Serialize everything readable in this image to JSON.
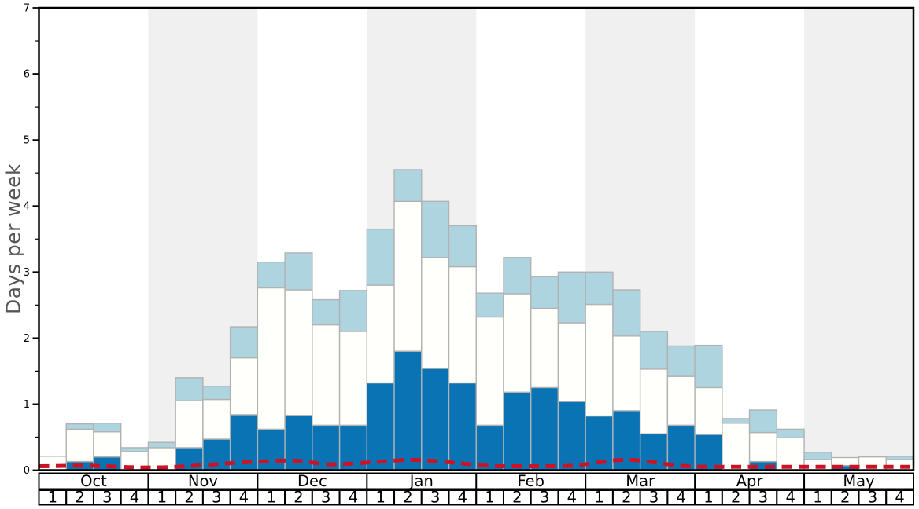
{
  "figure": {
    "y_axis_label": "Days per week",
    "colors": {
      "dark_blue": "#0a73b4",
      "white_bar": "#fffffb",
      "light_blue": "#aed4e0",
      "bar_border": "#b2b2b2",
      "red_line": "#cc1326",
      "shaded_band": "#f0f0f0",
      "axis": "#000000",
      "ylabel_text": "#555555"
    }
  },
  "chart_data": {
    "type": "bar",
    "stacked": true,
    "title": "",
    "xlabel": "",
    "ylabel": "Days per week",
    "ylim": [
      0,
      7
    ],
    "y_major_ticks": [
      "0",
      "1",
      "2",
      "3",
      "4",
      "5",
      "6",
      "7"
    ],
    "y_minor_tick_step": 0.5,
    "grid": false,
    "legend": "none",
    "months": [
      "Oct",
      "Nov",
      "Dec",
      "Jan",
      "Feb",
      "Mar",
      "Apr",
      "May"
    ],
    "week_labels": [
      "1",
      "2",
      "3",
      "4"
    ],
    "shaded_month_indexes": [
      1,
      3,
      5,
      7
    ],
    "categories": [
      "Oct-1",
      "Oct-2",
      "Oct-3",
      "Oct-4",
      "Nov-1",
      "Nov-2",
      "Nov-3",
      "Nov-4",
      "Dec-1",
      "Dec-2",
      "Dec-3",
      "Dec-4",
      "Jan-1",
      "Jan-2",
      "Jan-3",
      "Jan-4",
      "Feb-1",
      "Feb-2",
      "Feb-3",
      "Feb-4",
      "Mar-1",
      "Mar-2",
      "Mar-3",
      "Mar-4",
      "Apr-1",
      "Apr-2",
      "Apr-3",
      "Apr-4",
      "May-1",
      "May-2",
      "May-3",
      "May-4"
    ],
    "series": [
      {
        "name": "dark-blue-bottom-segment",
        "color": "#0a73b4",
        "values": [
          0,
          0.13,
          0.2,
          0,
          0,
          0.34,
          0.47,
          0.84,
          0.62,
          0.83,
          0.68,
          0.68,
          1.32,
          1.8,
          1.54,
          1.32,
          0.68,
          1.18,
          1.25,
          1.04,
          0.82,
          0.9,
          0.55,
          0.68,
          0.54,
          0,
          0.13,
          0,
          0,
          0.07,
          0,
          0
        ]
      },
      {
        "name": "white-middle-segment",
        "color": "#fffffb",
        "values": [
          0.21,
          0.49,
          0.38,
          0.28,
          0.34,
          0.71,
          0.6,
          0.86,
          2.14,
          1.9,
          1.52,
          1.42,
          1.48,
          2.27,
          1.68,
          1.76,
          1.64,
          1.49,
          1.2,
          1.19,
          1.69,
          1.13,
          0.98,
          0.74,
          0.71,
          0.71,
          0.44,
          0.49,
          0.16,
          0.12,
          0.2,
          0.16
        ]
      },
      {
        "name": "light-blue-top-segment",
        "color": "#aed4e0",
        "values": [
          0,
          0.08,
          0.13,
          0.06,
          0.08,
          0.35,
          0.2,
          0.47,
          0.39,
          0.56,
          0.38,
          0.62,
          0.85,
          0.48,
          0.85,
          0.62,
          0.36,
          0.55,
          0.48,
          0.77,
          0.49,
          0.7,
          0.57,
          0.46,
          0.64,
          0.07,
          0.34,
          0.13,
          0.11,
          0,
          0,
          0.05
        ]
      }
    ],
    "line_series": {
      "name": "red-dashed-line",
      "type": "line",
      "style": "dashed",
      "color": "#cc1326",
      "values": [
        0.06,
        0.07,
        0.06,
        0.04,
        0.04,
        0.06,
        0.09,
        0.12,
        0.14,
        0.15,
        0.08,
        0.1,
        0.13,
        0.16,
        0.14,
        0.1,
        0.06,
        0.06,
        0.06,
        0.06,
        0.12,
        0.17,
        0.12,
        0.06,
        0.05,
        0.05,
        0.05,
        0.05,
        0.05,
        0.05,
        0.05,
        0.05
      ]
    }
  }
}
